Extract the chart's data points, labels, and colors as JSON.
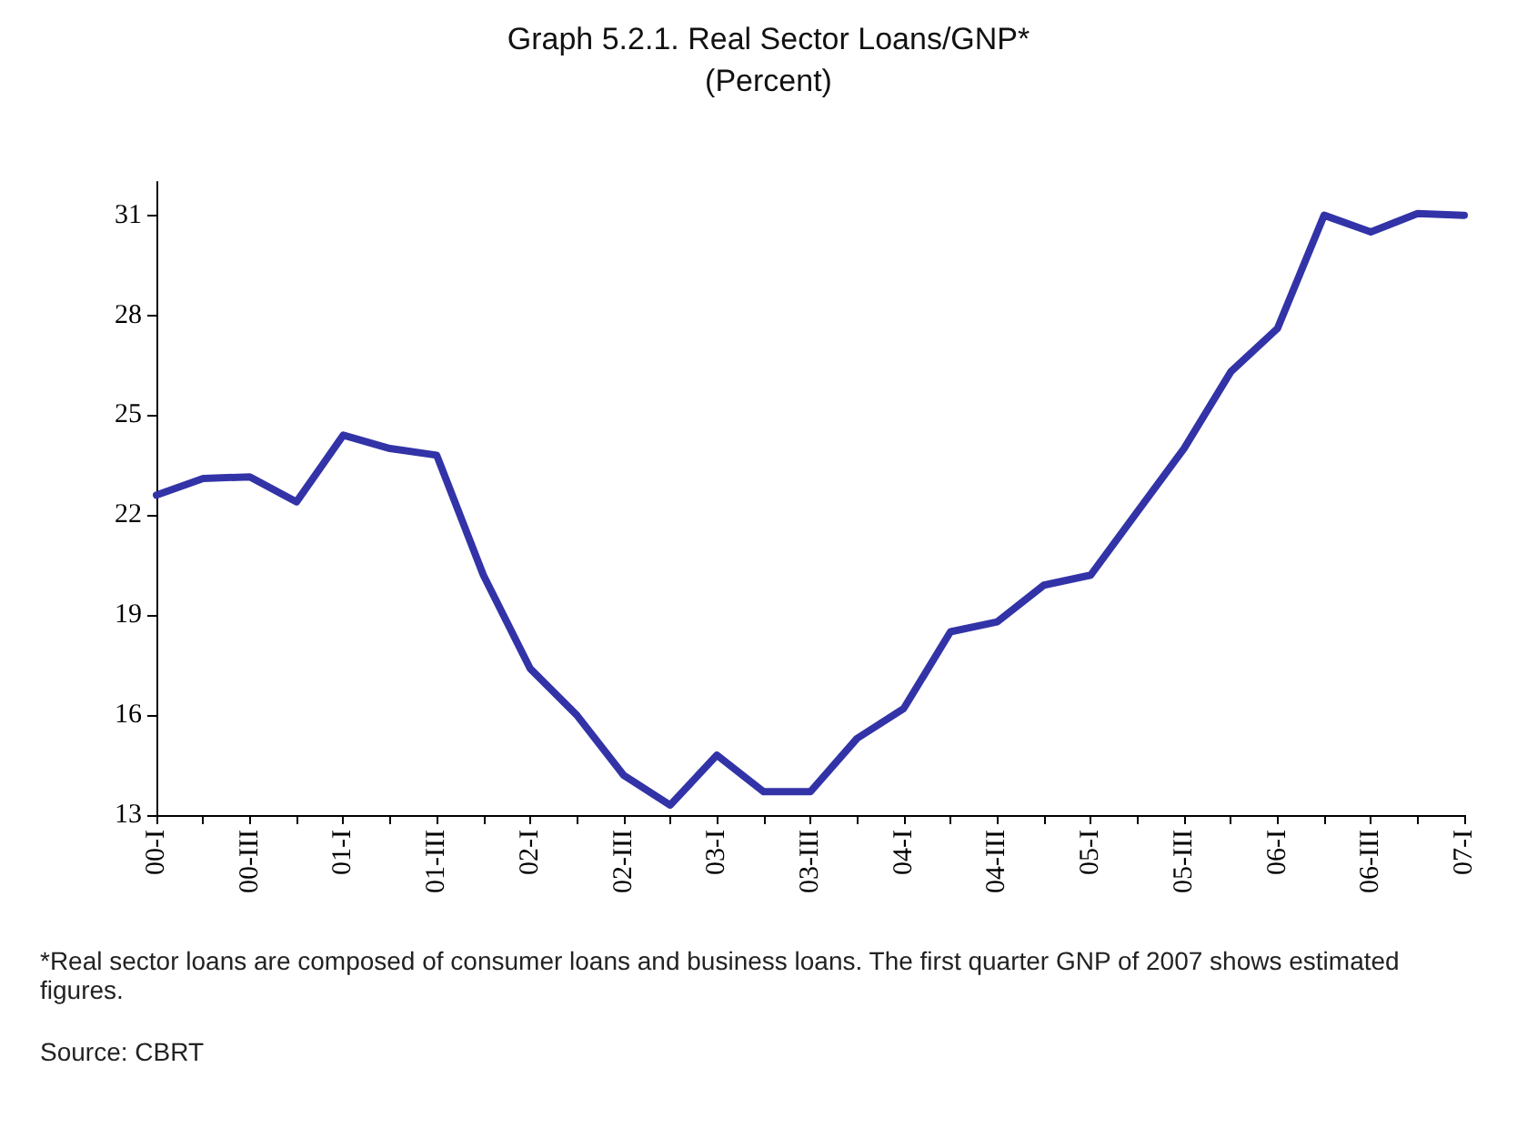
{
  "chart_data": {
    "type": "line",
    "title": "Graph 5.2.1. Real Sector Loans/GNP*",
    "subtitle": "(Percent)",
    "categories": [
      "00-I",
      null,
      "00-III",
      null,
      "01-I",
      null,
      "01-III",
      null,
      "02-I",
      null,
      "02-III",
      null,
      "03-I",
      null,
      "03-III",
      null,
      "04-I",
      null,
      "04-III",
      null,
      "05-I",
      null,
      "05-III",
      null,
      "06-I",
      null,
      "06-III",
      null,
      "07-I"
    ],
    "series": [
      {
        "color": "#3333a8",
        "values": [
          22.6,
          23.1,
          23.15,
          22.4,
          24.4,
          24.0,
          23.8,
          20.2,
          17.4,
          16.0,
          14.2,
          13.3,
          14.8,
          13.7,
          13.7,
          15.3,
          16.2,
          18.5,
          18.8,
          19.9,
          20.2,
          22.1,
          24.0,
          26.3,
          27.6,
          31.0,
          30.5,
          31.05,
          31.0
        ]
      }
    ],
    "ylim": [
      13,
      32
    ],
    "yticks": [
      13,
      16,
      19,
      22,
      25,
      28,
      31
    ],
    "grid": false,
    "marker": "none",
    "line_style": "solid",
    "annotations": [
      "*Real sector loans are composed of consumer loans and business loans. The first quarter GNP of 2007 shows estimated figures.",
      "Source: CBRT"
    ]
  }
}
